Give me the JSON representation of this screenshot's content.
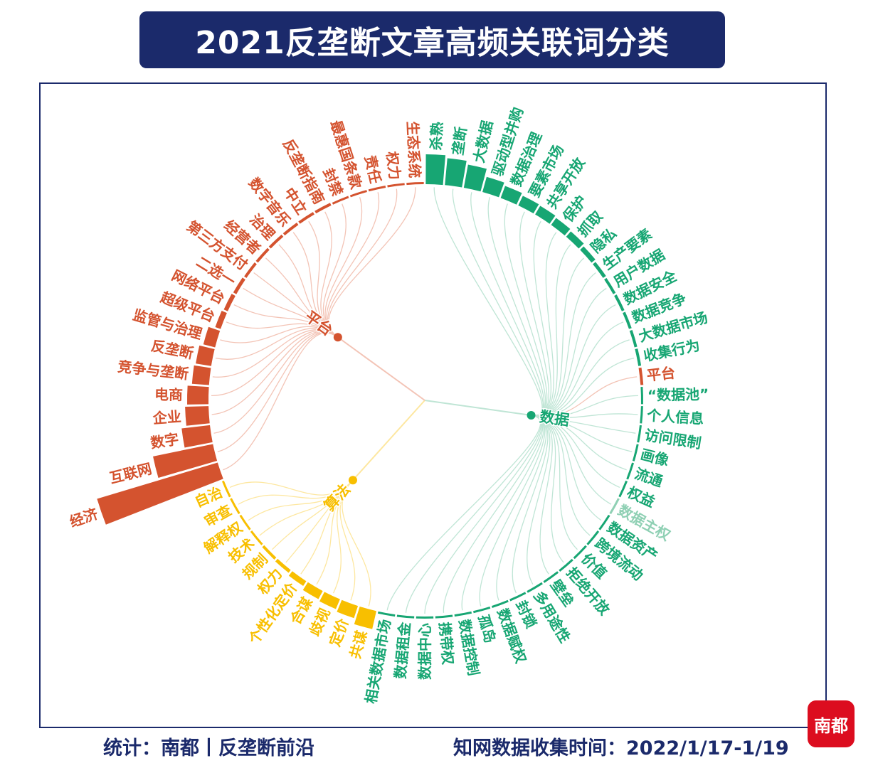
{
  "title": "2021反垄断文章高频关联词分类",
  "footer": {
    "source": "统计：南都丨反垄断前沿",
    "period": "知网数据收集时间：2022/1/17-1/19"
  },
  "logo_text": "南都",
  "colors": {
    "平台": "#d4532f",
    "数据": "#17a673",
    "算法": "#f8bf00",
    "数据_light": "#8fd0b4",
    "frame": "#1b2a6b"
  },
  "chart_data": {
    "type": "bar",
    "subtype": "radial dendrogram with bars",
    "title": "2021反垄断文章高频关联词分类",
    "value_note": "relative co-occurrence frequency (estimated from bar length)",
    "groups": [
      {
        "name": "数据",
        "label": "数据"
      },
      {
        "name": "算法",
        "label": "算法"
      },
      {
        "name": "平台",
        "label": "平台"
      }
    ],
    "leaves": [
      {
        "label": "杀熟",
        "group": "数据",
        "value": 42
      },
      {
        "label": "垄断",
        "group": "数据",
        "value": 38
      },
      {
        "label": "大数据",
        "group": "数据",
        "value": 33
      },
      {
        "label": "驱动型并购",
        "group": "数据",
        "value": 22
      },
      {
        "label": "数据治理",
        "group": "数据",
        "value": 18
      },
      {
        "label": "要素市场",
        "group": "数据",
        "value": 15
      },
      {
        "label": "共享开放",
        "group": "数据",
        "value": 14
      },
      {
        "label": "保护",
        "group": "数据",
        "value": 12
      },
      {
        "label": "抓取",
        "group": "数据",
        "value": 10
      },
      {
        "label": "隐私",
        "group": "数据",
        "value": 7
      },
      {
        "label": "生产要素",
        "group": "数据",
        "value": 5
      },
      {
        "label": "用户数据",
        "group": "数据",
        "value": 4
      },
      {
        "label": "数据安全",
        "group": "数据",
        "value": 4
      },
      {
        "label": "数据竞争",
        "group": "数据",
        "value": 4
      },
      {
        "label": "大数据市场",
        "group": "数据",
        "value": 4
      },
      {
        "label": "收集行为",
        "group": "数据",
        "value": 4
      },
      {
        "label": "平台",
        "group": "数据",
        "value": 4,
        "color_group": "平台"
      },
      {
        "label": "“数据池”",
        "group": "数据",
        "value": 3
      },
      {
        "label": "个人信息",
        "group": "数据",
        "value": 3
      },
      {
        "label": "访问限制",
        "group": "数据",
        "value": 3
      },
      {
        "label": "画像",
        "group": "数据",
        "value": 3
      },
      {
        "label": "流通",
        "group": "数据",
        "value": 3
      },
      {
        "label": "权益",
        "group": "数据",
        "value": 3
      },
      {
        "label": "数据主权",
        "group": "数据",
        "value": 3,
        "light": true
      },
      {
        "label": "数据资产",
        "group": "数据",
        "value": 3
      },
      {
        "label": "跨境流动",
        "group": "数据",
        "value": 3
      },
      {
        "label": "价值",
        "group": "数据",
        "value": 3
      },
      {
        "label": "拒绝开放",
        "group": "数据",
        "value": 3
      },
      {
        "label": "壁垒",
        "group": "数据",
        "value": 3
      },
      {
        "label": "多用途性",
        "group": "数据",
        "value": 3
      },
      {
        "label": "封锁",
        "group": "数据",
        "value": 3
      },
      {
        "label": "数据赋权",
        "group": "数据",
        "value": 3
      },
      {
        "label": "孤岛",
        "group": "数据",
        "value": 3
      },
      {
        "label": "数据控制",
        "group": "数据",
        "value": 3
      },
      {
        "label": "携带权",
        "group": "数据",
        "value": 3
      },
      {
        "label": "数据中心",
        "group": "数据",
        "value": 3
      },
      {
        "label": "数据租金",
        "group": "数据",
        "value": 3
      },
      {
        "label": "相关数据市场",
        "group": "数据",
        "value": 3
      },
      {
        "label": "共谋",
        "group": "算法",
        "value": 26
      },
      {
        "label": "定价",
        "group": "算法",
        "value": 18
      },
      {
        "label": "歧视",
        "group": "算法",
        "value": 15
      },
      {
        "label": "合谋",
        "group": "算法",
        "value": 13
      },
      {
        "label": "个性化定价",
        "group": "算法",
        "value": 8
      },
      {
        "label": "权力",
        "group": "算法",
        "value": 5
      },
      {
        "label": "规制",
        "group": "算法",
        "value": 4
      },
      {
        "label": "技术",
        "group": "算法",
        "value": 3
      },
      {
        "label": "解释权",
        "group": "算法",
        "value": 3
      },
      {
        "label": "审查",
        "group": "算法",
        "value": 3
      },
      {
        "label": "自治",
        "group": "算法",
        "value": 3
      },
      {
        "label": "经济",
        "group": "平台",
        "value": 177
      },
      {
        "label": "互联网",
        "group": "平台",
        "value": 86
      },
      {
        "label": "数字",
        "group": "平台",
        "value": 40
      },
      {
        "label": "企业",
        "group": "平台",
        "value": 33
      },
      {
        "label": "电商",
        "group": "平台",
        "value": 30
      },
      {
        "label": "竞争与垄断",
        "group": "平台",
        "value": 24
      },
      {
        "label": "反垄断",
        "group": "平台",
        "value": 22
      },
      {
        "label": "监管与治理",
        "group": "平台",
        "value": 17
      },
      {
        "label": "超级平台",
        "group": "平台",
        "value": 8
      },
      {
        "label": "网络平台",
        "group": "平台",
        "value": 6
      },
      {
        "label": "二选一",
        "group": "平台",
        "value": 5
      },
      {
        "label": "第三方支付",
        "group": "平台",
        "value": 4
      },
      {
        "label": "经营者",
        "group": "平台",
        "value": 4
      },
      {
        "label": "治理",
        "group": "平台",
        "value": 4
      },
      {
        "label": "数字音乐",
        "group": "平台",
        "value": 4
      },
      {
        "label": "中立",
        "group": "平台",
        "value": 4
      },
      {
        "label": "反垄断指南",
        "group": "平台",
        "value": 4
      },
      {
        "label": "封禁",
        "group": "平台",
        "value": 3
      },
      {
        "label": "最惠国条款",
        "group": "平台",
        "value": 3
      },
      {
        "label": "责任",
        "group": "平台",
        "value": 3
      },
      {
        "label": "权力",
        "group": "平台",
        "value": 3
      },
      {
        "label": "生态系统",
        "group": "平台",
        "value": 3
      }
    ]
  }
}
